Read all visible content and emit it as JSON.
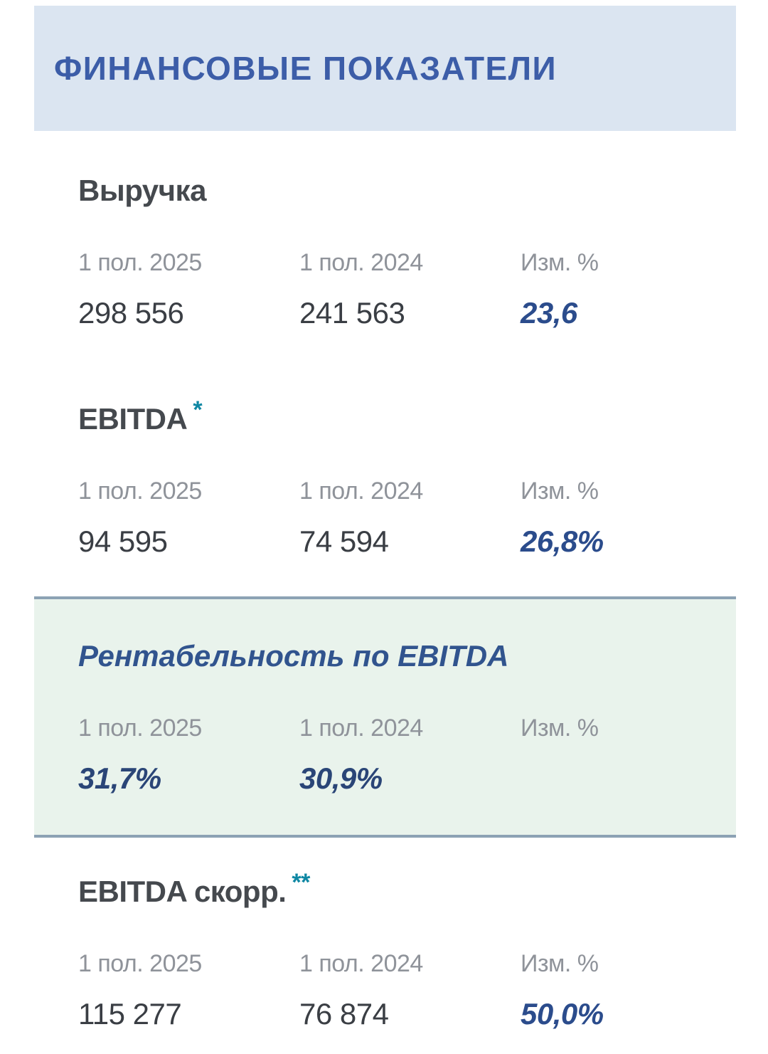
{
  "header": {
    "title": "ФИНАНСОВЫЕ ПОКАЗАТЕЛИ"
  },
  "columns": [
    "1 пол. 2025",
    "1 пол. 2024",
    "Изм. %"
  ],
  "metrics": [
    {
      "name": "Выручка",
      "footnote": "",
      "values": [
        "298 556",
        "241 563"
      ],
      "change": "23,6"
    },
    {
      "name": "EBITDA",
      "footnote": "*",
      "values": [
        "94 595",
        "74 594"
      ],
      "change": "26,8%"
    },
    {
      "name": "Рентабельность по EBITDA",
      "footnote": "",
      "values": [
        "31,7%",
        "30,9%"
      ],
      "change": ""
    },
    {
      "name": "EBITDA скорр.",
      "footnote": "**",
      "values": [
        "115 277",
        "76 874"
      ],
      "change": "50,0%"
    }
  ],
  "colors": {
    "header_bg": "#dbe5f1",
    "header_text": "#3c5da8",
    "section_title_text": "#45494e",
    "column_label_text": "#8f939a",
    "value_text": "#3a3e44",
    "change_text": "#2b4c8c",
    "footnote_accent": "#0e87a3",
    "highlight_bg": "#e9f3ec",
    "highlight_border": "#8ca2b4",
    "highlight_title_text": "#31548e",
    "highlight_value_text": "#2a4577"
  }
}
